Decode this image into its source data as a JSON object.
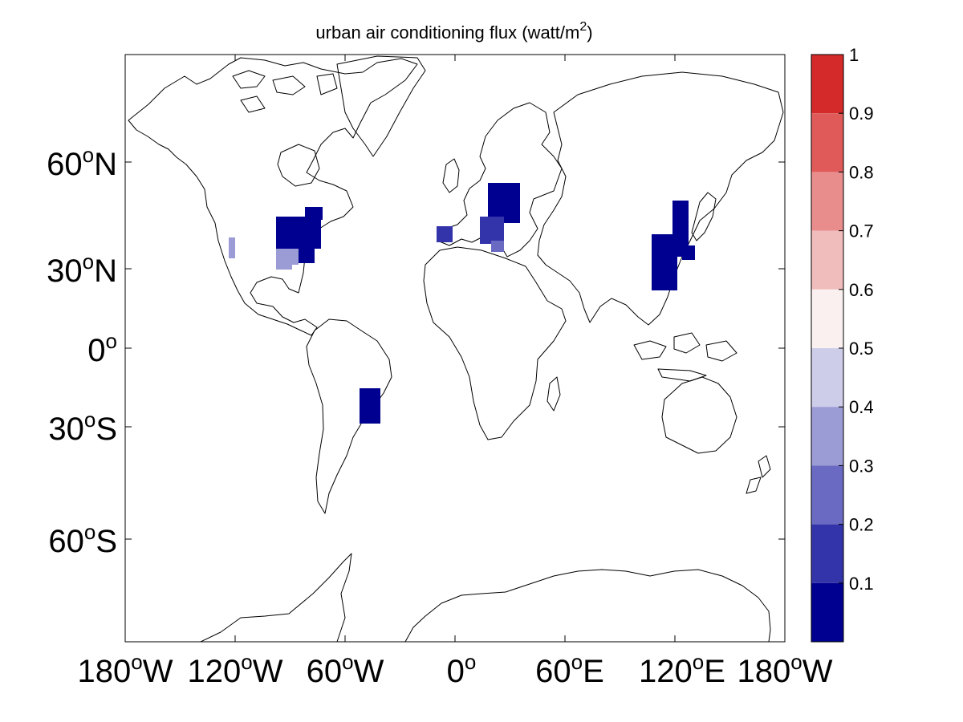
{
  "title": "urban air conditioning flux (watt/m",
  "title_sup": "2",
  "title_end": ")",
  "lat_ticks": [
    {
      "deg": "60",
      "hemi": "N"
    },
    {
      "deg": "30",
      "hemi": "N"
    },
    {
      "deg": "0",
      "hemi": ""
    },
    {
      "deg": "30",
      "hemi": "S"
    },
    {
      "deg": "60",
      "hemi": "S"
    }
  ],
  "lon_ticks": [
    {
      "deg": "180",
      "hemi": "W"
    },
    {
      "deg": "120",
      "hemi": "W"
    },
    {
      "deg": "60",
      "hemi": "W"
    },
    {
      "deg": "0",
      "hemi": ""
    },
    {
      "deg": "60",
      "hemi": "E"
    },
    {
      "deg": "120",
      "hemi": "E"
    },
    {
      "deg": "180",
      "hemi": "W"
    }
  ],
  "colorbar": {
    "labels": [
      "1",
      "0.9",
      "0.8",
      "0.7",
      "0.6",
      "0.5",
      "0.4",
      "0.3",
      "0.2",
      "0.1"
    ],
    "colors": [
      "#d42a2a",
      "#e05a5a",
      "#e88c8c",
      "#f0bcbc",
      "#fbf0f0",
      "#cdcdea",
      "#9b9bd6",
      "#6a6ac2",
      "#3434aa",
      "#000090"
    ]
  },
  "chart_data": {
    "type": "heatmap",
    "title": "urban air conditioning flux (watt/m2)",
    "projection": "mercator",
    "xlim": [
      -180,
      180
    ],
    "ylim": [
      -80,
      80
    ],
    "colorbar_range": [
      0,
      1
    ],
    "regions": [
      {
        "region": "Eastern United States",
        "lon": [
          -95,
          -75
        ],
        "lat": [
          33,
          45
        ],
        "value": 0.05
      },
      {
        "region": "Southern United States",
        "lon": [
          -98,
          -88
        ],
        "lat": [
          30,
          36
        ],
        "value": 0.35
      },
      {
        "region": "California",
        "lon": [
          -122,
          -117
        ],
        "lat": [
          34,
          38
        ],
        "value": 0.35
      },
      {
        "region": "Iberian Peninsula",
        "lon": [
          -10,
          0
        ],
        "lat": [
          37,
          42
        ],
        "value": 0.1
      },
      {
        "region": "Central and Eastern Europe",
        "lon": [
          12,
          34
        ],
        "lat": [
          38,
          55
        ],
        "value": 0.05
      },
      {
        "region": "Eastern China",
        "lon": [
          105,
          127
        ],
        "lat": [
          22,
          48
        ],
        "value": 0.05
      },
      {
        "region": "Southeastern Brazil",
        "lon": [
          -52,
          -38
        ],
        "lat": [
          -30,
          -15
        ],
        "value": 0.05
      }
    ]
  }
}
